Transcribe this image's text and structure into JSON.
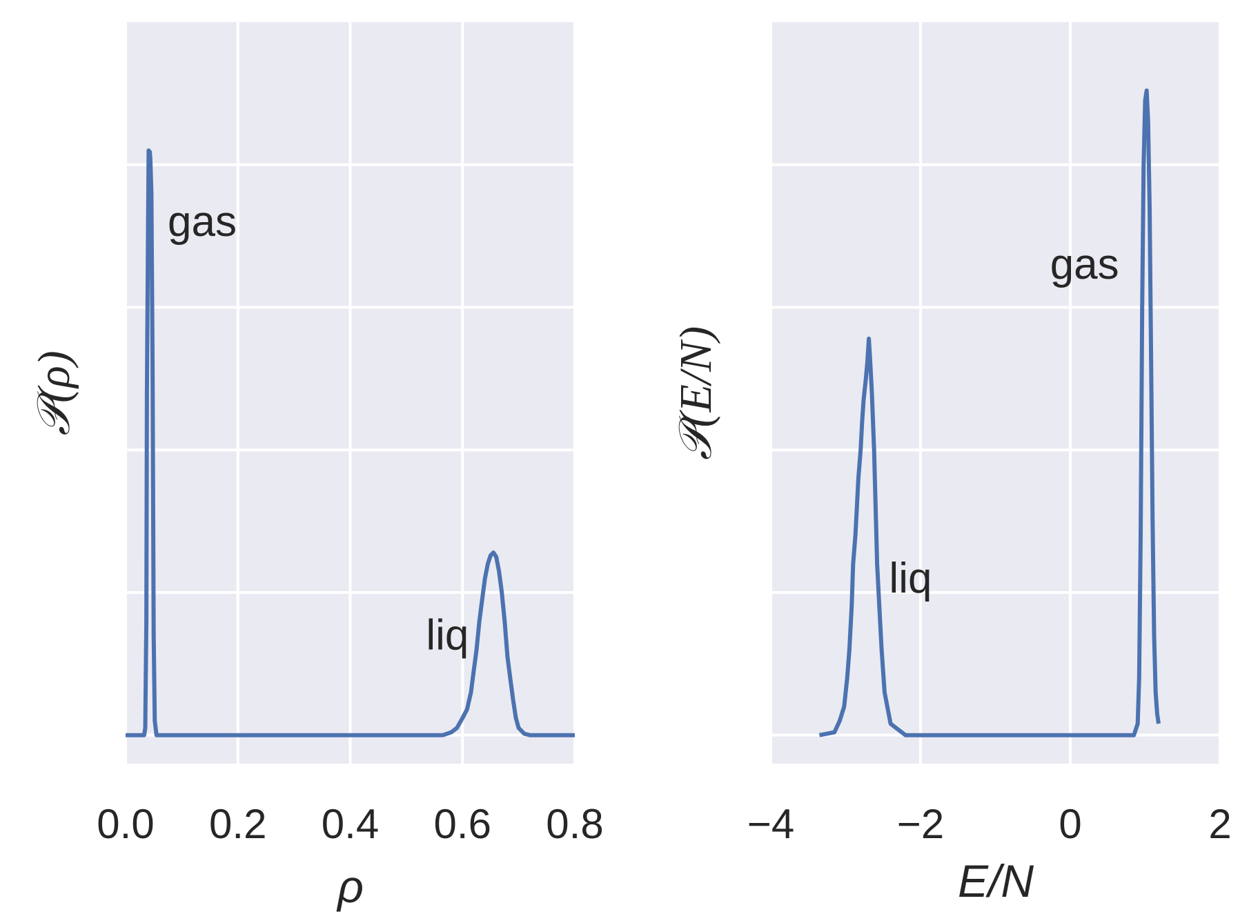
{
  "chart_data": [
    {
      "type": "line",
      "xlabel": "ρ",
      "ylabel": "𝒫(ρ)",
      "xlim": [
        0.0,
        0.8
      ],
      "ylim": [
        -0.2,
        5.0
      ],
      "xticks": [
        "0.0",
        "0.2",
        "0.4",
        "0.6",
        "0.8"
      ],
      "y_ticklabels_shown": false,
      "grid": true,
      "series": [
        {
          "color": "#4c72b0",
          "x": [
            0.0,
            0.033,
            0.035,
            0.037,
            0.038,
            0.04,
            0.041,
            0.043,
            0.044,
            0.046,
            0.048,
            0.05,
            0.052,
            0.055,
            0.06,
            0.1,
            0.3,
            0.5,
            0.565,
            0.58,
            0.59,
            0.6,
            0.608,
            0.615,
            0.62,
            0.625,
            0.63,
            0.635,
            0.64,
            0.645,
            0.65,
            0.655,
            0.66,
            0.665,
            0.67,
            0.675,
            0.68,
            0.685,
            0.69,
            0.695,
            0.7,
            0.71,
            0.72,
            0.73,
            0.75,
            0.8
          ],
          "y": [
            0.0,
            0.0,
            0.05,
            0.8,
            2.4,
            3.6,
            4.1,
            4.09,
            4.05,
            3.8,
            2.6,
            0.7,
            0.1,
            0.0,
            0.0,
            0.0,
            0.0,
            0.0,
            0.0,
            0.02,
            0.05,
            0.12,
            0.18,
            0.3,
            0.45,
            0.6,
            0.8,
            0.95,
            1.1,
            1.2,
            1.26,
            1.28,
            1.25,
            1.15,
            1.0,
            0.8,
            0.55,
            0.4,
            0.25,
            0.12,
            0.05,
            0.01,
            0.0,
            0.0,
            0.0,
            0.0
          ]
        }
      ],
      "annotations": [
        {
          "text": "gas",
          "x": 0.075,
          "y": 3.5
        },
        {
          "text": "liq",
          "x": 0.535,
          "y": 0.6
        }
      ]
    },
    {
      "type": "line",
      "xlabel": "E/N",
      "ylabel": "𝒫(E/N)",
      "xlim": [
        -4.0,
        2.0
      ],
      "ylim": [
        -0.2,
        5.0
      ],
      "xticks": [
        "−4",
        "−2",
        "0",
        "2"
      ],
      "y_ticklabels_shown": false,
      "grid": true,
      "series": [
        {
          "color": "#4c72b0",
          "x": [
            -3.35,
            -3.25,
            -3.15,
            -3.08,
            -3.02,
            -2.98,
            -2.95,
            -2.92,
            -2.9,
            -2.87,
            -2.85,
            -2.83,
            -2.8,
            -2.78,
            -2.76,
            -2.73,
            -2.71,
            -2.69,
            -2.67,
            -2.65,
            -2.62,
            -2.6,
            -2.58,
            -2.55,
            -2.52,
            -2.48,
            -2.4,
            -2.2,
            -1.0,
            0.0,
            0.85,
            0.9,
            0.92,
            0.94,
            0.96,
            0.98,
            1.0,
            1.02,
            1.04,
            1.06,
            1.08,
            1.1,
            1.12,
            1.14,
            1.16,
            1.18
          ],
          "y": [
            0.0,
            0.01,
            0.02,
            0.1,
            0.2,
            0.4,
            0.6,
            0.9,
            1.2,
            1.4,
            1.6,
            1.8,
            2.0,
            2.2,
            2.35,
            2.5,
            2.62,
            2.78,
            2.6,
            2.4,
            2.0,
            1.6,
            1.2,
            0.9,
            0.6,
            0.3,
            0.08,
            0.0,
            0.0,
            0.0,
            0.0,
            0.08,
            0.4,
            1.4,
            3.0,
            4.0,
            4.45,
            4.52,
            4.3,
            3.7,
            2.6,
            1.5,
            0.7,
            0.3,
            0.15,
            0.08
          ]
        }
      ],
      "annotations": [
        {
          "text": "gas",
          "x": -0.27,
          "y": 3.2
        },
        {
          "text": "liq",
          "x": -2.42,
          "y": 1.0
        }
      ]
    }
  ]
}
